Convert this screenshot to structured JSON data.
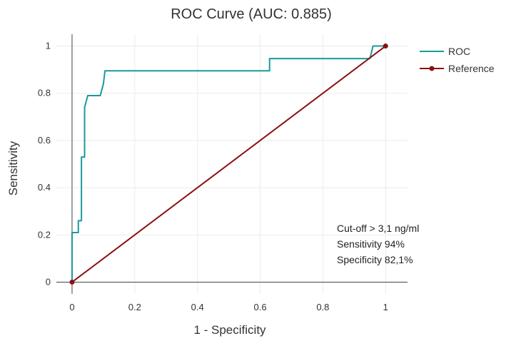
{
  "chart_data": {
    "type": "line",
    "title": "ROC Curve (AUC: 0.885)",
    "xlabel": "1 - Specificity",
    "ylabel": "Sensitivity",
    "xlim": [
      -0.05,
      1.07
    ],
    "ylim": [
      -0.05,
      1.05
    ],
    "x_ticks": [
      {
        "value": 0,
        "label": "0"
      },
      {
        "value": 0.2,
        "label": "0.2"
      },
      {
        "value": 0.4,
        "label": "0.4"
      },
      {
        "value": 0.6,
        "label": "0.6"
      },
      {
        "value": 0.8,
        "label": "0.8"
      },
      {
        "value": 1,
        "label": "1"
      }
    ],
    "y_ticks": [
      {
        "value": 0,
        "label": "0"
      },
      {
        "value": 0.2,
        "label": "0.2"
      },
      {
        "value": 0.4,
        "label": "0.4"
      },
      {
        "value": 0.6,
        "label": "0.6"
      },
      {
        "value": 0.8,
        "label": "0.8"
      },
      {
        "value": 1,
        "label": "1"
      }
    ],
    "grid": true,
    "legend_position": "top-right",
    "series": [
      {
        "name": "ROC",
        "color": "#1a9a9a",
        "markers": false,
        "x": [
          0,
          0,
          0.02,
          0.02,
          0.03,
          0.03,
          0.04,
          0.04,
          0.05,
          0.09,
          0.1,
          0.105,
          0.63,
          0.63,
          0.95,
          0.96,
          1
        ],
        "y": [
          0,
          0.21,
          0.21,
          0.26,
          0.26,
          0.53,
          0.53,
          0.74,
          0.79,
          0.79,
          0.84,
          0.895,
          0.895,
          0.947,
          0.947,
          1,
          1
        ]
      },
      {
        "name": "Reference",
        "color": "#8b1010",
        "markers": true,
        "x": [
          0,
          1
        ],
        "y": [
          0,
          1
        ]
      }
    ],
    "annotations": [
      "Cut-off ˃ 3,1 ng/ml",
      "Sensitivity 94%",
      "Specificity 82,1%"
    ]
  }
}
